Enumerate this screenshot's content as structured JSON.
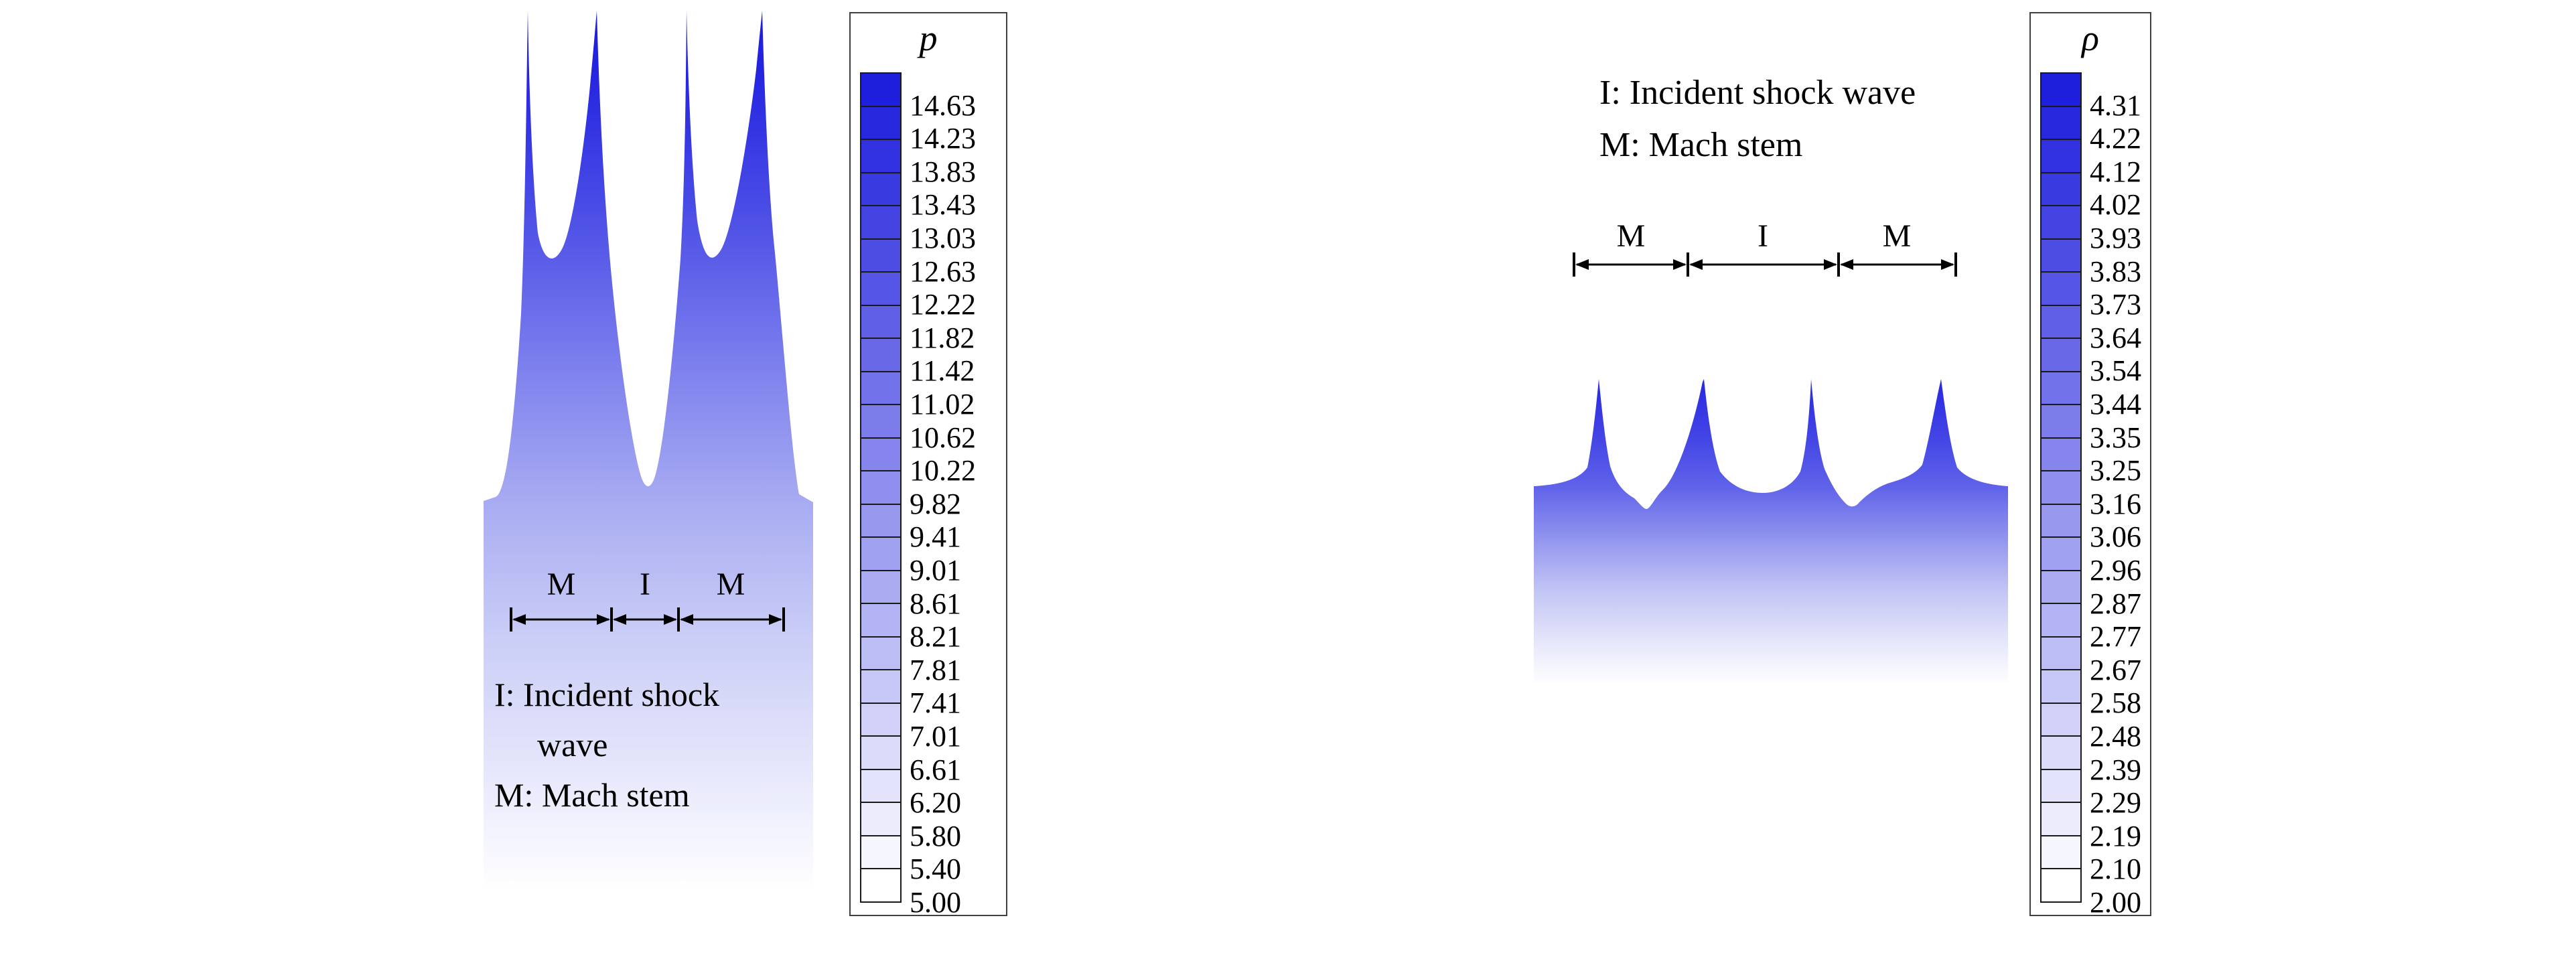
{
  "figure": {
    "left": {
      "colorbar": {
        "title": "p",
        "ticks": [
          "14.63",
          "14.23",
          "13.83",
          "13.43",
          "13.03",
          "12.63",
          "12.22",
          "11.82",
          "11.42",
          "11.02",
          "10.62",
          "10.22",
          "9.82",
          "9.41",
          "9.01",
          "8.61",
          "8.21",
          "7.81",
          "7.41",
          "7.01",
          "6.61",
          "6.20",
          "5.80",
          "5.40",
          "5.00"
        ],
        "top_color": "#1e1edd",
        "bottom_color": "#ffffff"
      },
      "region_labels": [
        "M",
        "I",
        "M"
      ],
      "legend_lines": [
        "I: Incident shock",
        "wave",
        "M: Mach stem"
      ]
    },
    "right": {
      "colorbar": {
        "title": "ρ",
        "ticks": [
          "4.31",
          "4.22",
          "4.12",
          "4.02",
          "3.93",
          "3.83",
          "3.73",
          "3.64",
          "3.54",
          "3.44",
          "3.35",
          "3.25",
          "3.16",
          "3.06",
          "2.96",
          "2.87",
          "2.77",
          "2.67",
          "2.58",
          "2.48",
          "2.39",
          "2.29",
          "2.19",
          "2.10",
          "2.00"
        ],
        "top_color": "#1e1edd",
        "bottom_color": "#ffffff"
      },
      "region_labels": [
        "M",
        "I",
        "M"
      ],
      "legend_lines": [
        "I: Incident shock wave",
        "M: Mach stem"
      ]
    }
  },
  "chart_data": [
    {
      "type": "heatmap",
      "variable": "p",
      "title": "p",
      "colormap": "blue-to-white",
      "legend_position": "right",
      "value_range": [
        5.0,
        14.63
      ],
      "contour_levels": [
        14.63,
        14.23,
        13.83,
        13.43,
        13.03,
        12.63,
        12.22,
        11.82,
        11.42,
        11.02,
        10.62,
        10.22,
        9.82,
        9.41,
        9.01,
        8.61,
        8.21,
        7.81,
        7.41,
        7.01,
        6.61,
        6.2,
        5.8,
        5.4,
        5.0
      ],
      "annotations": [
        "M",
        "I",
        "M",
        "I: Incident shock wave",
        "M: Mach stem"
      ]
    },
    {
      "type": "heatmap",
      "variable": "ρ",
      "title": "ρ",
      "colormap": "blue-to-white",
      "legend_position": "right",
      "value_range": [
        2.0,
        4.31
      ],
      "contour_levels": [
        4.31,
        4.22,
        4.12,
        4.02,
        3.93,
        3.83,
        3.73,
        3.64,
        3.54,
        3.44,
        3.35,
        3.25,
        3.16,
        3.06,
        2.96,
        2.87,
        2.77,
        2.67,
        2.58,
        2.48,
        2.39,
        2.29,
        2.19,
        2.1,
        2.0
      ],
      "annotations": [
        "M",
        "I",
        "M",
        "I: Incident shock wave",
        "M: Mach stem"
      ]
    }
  ]
}
